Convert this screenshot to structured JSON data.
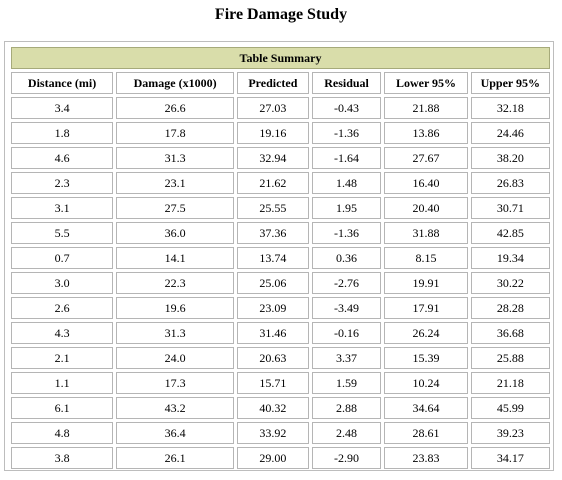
{
  "page": {
    "title": "Fire Damage Study"
  },
  "table": {
    "summary": "Table Summary",
    "columns": [
      "Distance (mi)",
      "Damage (x1000)",
      "Predicted",
      "Residual",
      "Lower 95%",
      "Upper 95%"
    ],
    "rows": [
      [
        "3.4",
        "26.6",
        "27.03",
        "-0.43",
        "21.88",
        "32.18"
      ],
      [
        "1.8",
        "17.8",
        "19.16",
        "-1.36",
        "13.86",
        "24.46"
      ],
      [
        "4.6",
        "31.3",
        "32.94",
        "-1.64",
        "27.67",
        "38.20"
      ],
      [
        "2.3",
        "23.1",
        "21.62",
        "1.48",
        "16.40",
        "26.83"
      ],
      [
        "3.1",
        "27.5",
        "25.55",
        "1.95",
        "20.40",
        "30.71"
      ],
      [
        "5.5",
        "36.0",
        "37.36",
        "-1.36",
        "31.88",
        "42.85"
      ],
      [
        "0.7",
        "14.1",
        "13.74",
        "0.36",
        "8.15",
        "19.34"
      ],
      [
        "3.0",
        "22.3",
        "25.06",
        "-2.76",
        "19.91",
        "30.22"
      ],
      [
        "2.6",
        "19.6",
        "23.09",
        "-3.49",
        "17.91",
        "28.28"
      ],
      [
        "4.3",
        "31.3",
        "31.46",
        "-0.16",
        "26.24",
        "36.68"
      ],
      [
        "2.1",
        "24.0",
        "20.63",
        "3.37",
        "15.39",
        "25.88"
      ],
      [
        "1.1",
        "17.3",
        "15.71",
        "1.59",
        "10.24",
        "21.18"
      ],
      [
        "6.1",
        "43.2",
        "40.32",
        "2.88",
        "34.64",
        "45.99"
      ],
      [
        "4.8",
        "36.4",
        "33.92",
        "2.48",
        "28.61",
        "39.23"
      ],
      [
        "3.8",
        "26.1",
        "29.00",
        "-2.90",
        "23.83",
        "34.17"
      ]
    ]
  }
}
